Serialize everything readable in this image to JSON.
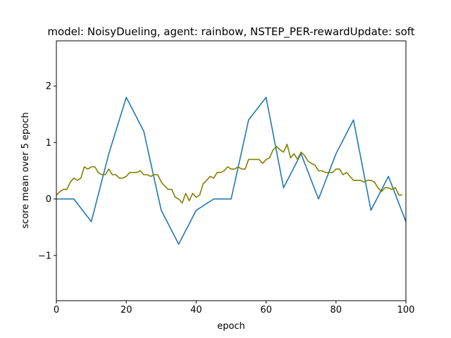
{
  "chart_data": {
    "type": "line",
    "title": "model: NoisyDueling, agent: rainbow, NSTEP_PER-rewardUpdate: soft",
    "xlabel": "epoch",
    "ylabel": "score mean over 5 epoch",
    "xlim": [
      0,
      100
    ],
    "ylim": [
      -1.8,
      2.8
    ],
    "xticks": [
      0,
      20,
      40,
      60,
      80,
      100
    ],
    "xtick_labels": [
      "0",
      "20",
      "40",
      "60",
      "80",
      "100"
    ],
    "yticks": [
      -1,
      0,
      1,
      2
    ],
    "ytick_labels": [
      "−1",
      "0",
      "1",
      "2"
    ],
    "grid": false,
    "legend": "none",
    "series": [
      {
        "color": "#1f77b4",
        "x": [
          0,
          5,
          10,
          15,
          20,
          25,
          30,
          35,
          40,
          45,
          50,
          55,
          60,
          65,
          70,
          75,
          80,
          85,
          90,
          95,
          100
        ],
        "y": [
          0,
          0,
          -0.4,
          0.8,
          1.8,
          1.2,
          -0.2,
          -0.8,
          -0.2,
          0,
          0,
          1.4,
          1.8,
          0.2,
          0.8,
          0,
          0.8,
          1.4,
          -0.2,
          0.4,
          -0.4
        ]
      },
      {
        "color": "#808000",
        "x": [
          0,
          1,
          2,
          3,
          4,
          5,
          6,
          7,
          8,
          9,
          10,
          11,
          12,
          13,
          14,
          15,
          16,
          17,
          18,
          19,
          20,
          21,
          22,
          23,
          24,
          25,
          26,
          27,
          28,
          29,
          30,
          31,
          32,
          33,
          34,
          35,
          36,
          37,
          38,
          39,
          40,
          41,
          42,
          43,
          44,
          45,
          46,
          47,
          48,
          49,
          50,
          51,
          52,
          53,
          54,
          55,
          56,
          57,
          58,
          59,
          60,
          61,
          62,
          63,
          64,
          65,
          66,
          67,
          68,
          69,
          70,
          71,
          72,
          73,
          74,
          75,
          76,
          77,
          78,
          79,
          80,
          81,
          82,
          83,
          84,
          85,
          86,
          87,
          88,
          89,
          90,
          91,
          92,
          93,
          94,
          95,
          96,
          97,
          98,
          99
        ],
        "y": [
          0.07,
          0.13,
          0.17,
          0.17,
          0.3,
          0.37,
          0.33,
          0.37,
          0.57,
          0.53,
          0.57,
          0.57,
          0.47,
          0.43,
          0.43,
          0.53,
          0.43,
          0.43,
          0.37,
          0.37,
          0.4,
          0.47,
          0.47,
          0.47,
          0.5,
          0.43,
          0.43,
          0.4,
          0.43,
          0.43,
          0.3,
          0.23,
          0.17,
          0.17,
          0.03,
          0.0,
          -0.07,
          0.1,
          -0.03,
          0.1,
          0.03,
          0.07,
          0.27,
          0.33,
          0.4,
          0.37,
          0.47,
          0.47,
          0.5,
          0.57,
          0.53,
          0.53,
          0.57,
          0.53,
          0.53,
          0.7,
          0.7,
          0.7,
          0.7,
          0.63,
          0.7,
          0.73,
          0.87,
          0.93,
          0.87,
          0.83,
          0.97,
          0.73,
          0.8,
          0.7,
          0.83,
          0.77,
          0.67,
          0.63,
          0.6,
          0.5,
          0.5,
          0.47,
          0.47,
          0.47,
          0.53,
          0.53,
          0.43,
          0.47,
          0.4,
          0.33,
          0.33,
          0.33,
          0.3,
          0.33,
          0.33,
          0.3,
          0.2,
          0.13,
          0.2,
          0.2,
          0.17,
          0.2,
          0.07,
          0.07
        ]
      }
    ]
  }
}
